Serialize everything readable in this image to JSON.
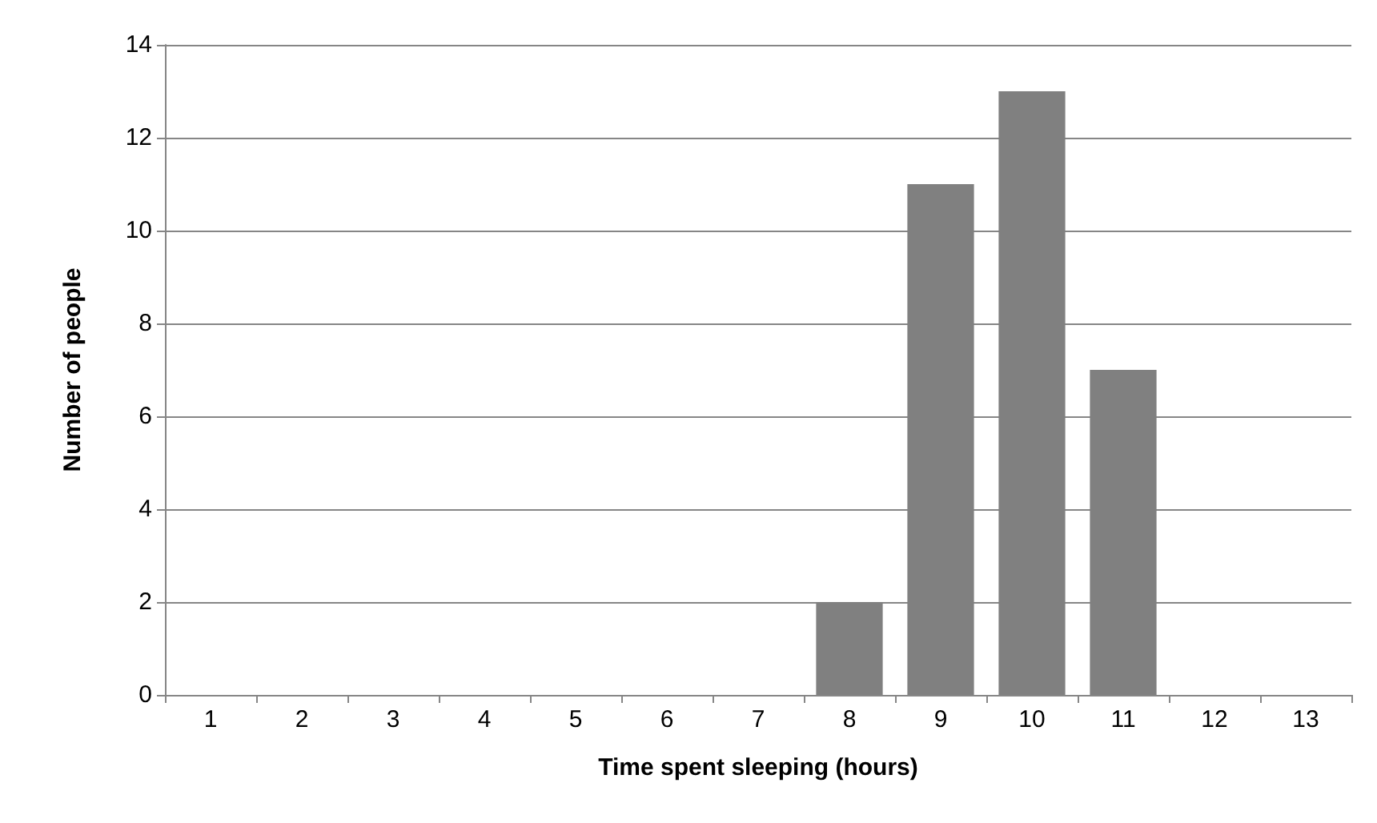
{
  "chart_data": {
    "type": "bar",
    "xlabel": "Time spent sleeping (hours)",
    "ylabel": "Number of people",
    "categories": [
      "1",
      "2",
      "3",
      "4",
      "5",
      "6",
      "7",
      "8",
      "9",
      "10",
      "11",
      "12",
      "13"
    ],
    "values": [
      0,
      0,
      0,
      0,
      0,
      0,
      0,
      2,
      11,
      13,
      7,
      0,
      0
    ],
    "color": "#808080",
    "ylim": [
      0,
      14
    ],
    "yticks": [
      0,
      2,
      4,
      6,
      8,
      10,
      12,
      14
    ],
    "grid": "y"
  }
}
